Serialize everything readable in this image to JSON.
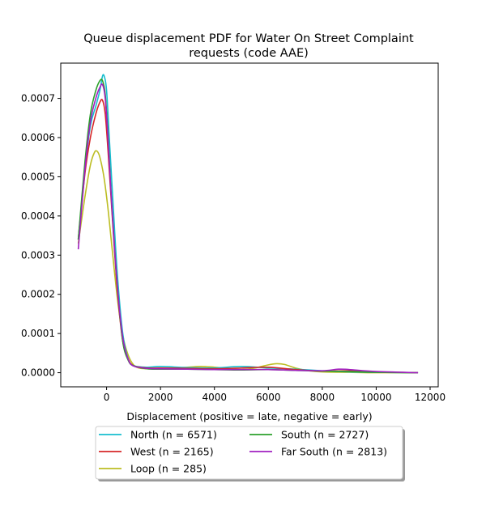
{
  "chart_data": {
    "type": "line",
    "title": "Queue displacement PDF for Water On Street Complaint requests (code AAE)",
    "title_lines": [
      "Queue displacement PDF for Water On Street Complaint",
      "requests (code AAE)"
    ],
    "xlabel": "Displacement (positive = late, negative = early)",
    "ylabel": "",
    "xlim": [
      -1700,
      12300
    ],
    "ylim": [
      -3.6e-05,
      0.00079
    ],
    "xticks": [
      0,
      2000,
      4000,
      6000,
      8000,
      10000,
      12000
    ],
    "xtick_labels": [
      "0",
      "2000",
      "4000",
      "6000",
      "8000",
      "10000",
      "12000"
    ],
    "yticks": [
      0,
      0.0001,
      0.0002,
      0.0003,
      0.0004,
      0.0005,
      0.0006,
      0.0007
    ],
    "ytick_labels": [
      "0.0000",
      "0.0001",
      "0.0002",
      "0.0003",
      "0.0004",
      "0.0005",
      "0.0006",
      "0.0007"
    ],
    "grid": false,
    "legend_position": "below plot, two columns",
    "series": [
      {
        "name": "North (n = 6571)",
        "color": "#17becf",
        "x": [
          -1050,
          -800,
          -600,
          -400,
          -250,
          -150,
          -80,
          0,
          100,
          250,
          400,
          600,
          800,
          1000,
          1500,
          2000,
          3000,
          4000,
          5000,
          6000,
          7000,
          8000,
          9000,
          10000,
          11550
        ],
        "y": [
          0.00034,
          0.00052,
          0.00063,
          0.00068,
          0.00072,
          0.000757,
          0.000755,
          0.00072,
          0.0006,
          0.00042,
          0.00025,
          0.0001,
          3.5e-05,
          1.8e-05,
          1.4e-05,
          1.6e-05,
          1.3e-05,
          1.2e-05,
          1.6e-05,
          1.2e-05,
          9e-06,
          5e-06,
          2e-06,
          1e-06,
          0.0
        ]
      },
      {
        "name": "West (n = 2165)",
        "color": "#d62728",
        "x": [
          -1050,
          -800,
          -600,
          -400,
          -250,
          -150,
          -50,
          50,
          200,
          400,
          600,
          800,
          1000,
          1500,
          2000,
          3000,
          4000,
          5000,
          6000,
          7000,
          8000,
          9000,
          10000,
          11550
        ],
        "y": [
          0.00034,
          0.00051,
          0.0006,
          0.00066,
          0.00069,
          0.000695,
          0.00066,
          0.00057,
          0.00041,
          0.00021,
          8e-05,
          3.5e-05,
          1.8e-05,
          1.2e-05,
          1.2e-05,
          1.1e-05,
          1e-05,
          1.2e-05,
          1.4e-05,
          8e-06,
          4e-06,
          5e-06,
          2e-06,
          0.0
        ]
      },
      {
        "name": "Loop (n = 285)",
        "color": "#bcbd22",
        "x": [
          -1050,
          -800,
          -600,
          -450,
          -350,
          -250,
          -100,
          50,
          200,
          400,
          600,
          800,
          1000,
          1200,
          1500,
          2000,
          3000,
          3500,
          4000,
          5000,
          5500,
          6000,
          6300,
          6600,
          7000,
          7500,
          8000,
          9000,
          10000,
          11550
        ],
        "y": [
          0.00033,
          0.00045,
          0.00053,
          0.000562,
          0.000565,
          0.00055,
          0.0005,
          0.00042,
          0.00032,
          0.00019,
          9.5e-05,
          4.5e-05,
          2e-05,
          1.2e-05,
          1e-05,
          1e-05,
          1.4e-05,
          1.6e-05,
          1.4e-05,
          8e-06,
          1.2e-05,
          2e-05,
          2.3e-05,
          2.1e-05,
          1.2e-05,
          5e-06,
          2e-06,
          1e-06,
          0.0,
          0.0
        ]
      },
      {
        "name": "South (n = 2727)",
        "color": "#2ca02c",
        "x": [
          -1050,
          -800,
          -600,
          -400,
          -250,
          -150,
          -50,
          50,
          200,
          400,
          600,
          800,
          1000,
          1500,
          2000,
          3000,
          4000,
          5000,
          6000,
          7000,
          8000,
          9000,
          10000,
          11550
        ],
        "y": [
          0.00034,
          0.00054,
          0.00066,
          0.00072,
          0.000745,
          0.000745,
          0.00071,
          0.00061,
          0.00042,
          0.00022,
          8e-05,
          3.2e-05,
          1.8e-05,
          1e-05,
          9e-06,
          9e-06,
          8e-06,
          7e-06,
          8e-06,
          6e-06,
          4e-06,
          3e-06,
          1e-06,
          0.0
        ]
      },
      {
        "name": "Far South (n = 2813)",
        "color": "#a020c0",
        "x": [
          -1050,
          -800,
          -600,
          -400,
          -250,
          -150,
          -50,
          50,
          200,
          400,
          600,
          800,
          1000,
          1500,
          2000,
          3000,
          4000,
          5000,
          6000,
          7000,
          8000,
          8600,
          9000,
          10000,
          11550
        ],
        "y": [
          0.000315,
          0.00052,
          0.00064,
          0.0007,
          0.000728,
          0.000735,
          0.0007,
          0.0006,
          0.00042,
          0.00022,
          9e-05,
          3.5e-05,
          1.7e-05,
          1.1e-05,
          1e-05,
          9e-06,
          8e-06,
          8e-06,
          8e-06,
          6e-06,
          5e-06,
          9e-06,
          8e-06,
          3e-06,
          0.0
        ]
      }
    ]
  }
}
